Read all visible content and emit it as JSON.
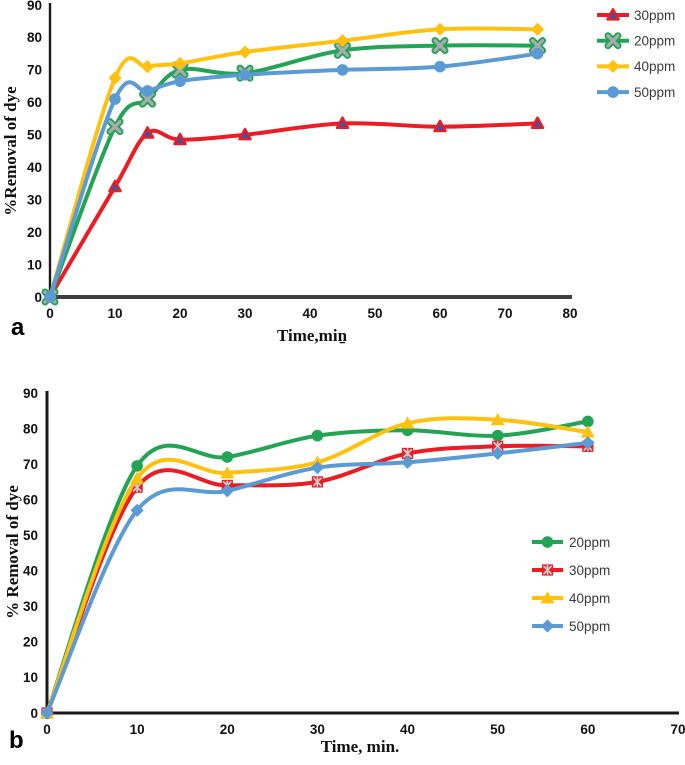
{
  "figure": {
    "panel_a_letter": "a",
    "panel_b_letter": "b"
  },
  "chart_data": [
    {
      "type": "line",
      "panel": "a",
      "title": "",
      "xlabel": "Time,miṉ",
      "ylabel": "%Removal of dye",
      "xlim": [
        0,
        80
      ],
      "ylim": [
        0,
        90
      ],
      "xticks": [
        0,
        10,
        20,
        30,
        40,
        50,
        60,
        70,
        80
      ],
      "yticks": [
        0,
        10,
        20,
        30,
        40,
        50,
        60,
        70,
        80,
        90
      ],
      "grid": false,
      "line_style": "smooth",
      "legend_position": "outside-top-right",
      "x": [
        0,
        10,
        15,
        20,
        30,
        45,
        60,
        75
      ],
      "series": [
        {
          "name": "30ppm",
          "color": "#EC1C24",
          "marker": "triangle-blue",
          "marker_fill": "#3A53A4",
          "values": [
            0,
            34,
            50.5,
            48.5,
            50,
            53.5,
            52.5,
            53.5
          ]
        },
        {
          "name": "20ppm",
          "color": "#23A455",
          "marker": "x-gray",
          "marker_fill": "#A9ABAE",
          "values": [
            0,
            52.5,
            61,
            70,
            69,
            76,
            77.5,
            77.5
          ]
        },
        {
          "name": "40ppm",
          "color": "#FFC10E",
          "marker": "diamond",
          "marker_fill": "#FFC10E",
          "values": [
            0,
            67.5,
            71,
            72,
            75.5,
            79,
            82.5,
            82.5
          ]
        },
        {
          "name": "50ppm",
          "color": "#5B9BD5",
          "marker": "circle",
          "marker_fill": "#5B9BD5",
          "values": [
            0,
            61,
            63.5,
            66.5,
            68.5,
            70,
            71,
            75
          ]
        }
      ]
    },
    {
      "type": "line",
      "panel": "b",
      "title": "",
      "xlabel": "Time, min.",
      "ylabel": "% Removal of dye",
      "xlim": [
        0,
        70
      ],
      "ylim": [
        0,
        90
      ],
      "xticks": [
        0,
        10,
        20,
        30,
        40,
        50,
        60,
        70
      ],
      "yticks": [
        0,
        10,
        20,
        30,
        40,
        50,
        60,
        70,
        80,
        90
      ],
      "grid": false,
      "line_style": "smooth",
      "legend_position": "inside-middle-right",
      "x": [
        0,
        10,
        20,
        30,
        40,
        50,
        60
      ],
      "series": [
        {
          "name": "20ppm",
          "color": "#23A455",
          "marker": "circle",
          "marker_fill": "#23A455",
          "values": [
            0,
            69.5,
            72,
            78,
            79.5,
            78,
            82
          ]
        },
        {
          "name": "30ppm",
          "color": "#EC1C24",
          "marker": "square-asterisk",
          "marker_fill": "#C9CACC",
          "values": [
            0,
            63.5,
            64,
            65,
            73,
            75,
            75
          ]
        },
        {
          "name": "40ppm",
          "color": "#FFC10E",
          "marker": "triangle",
          "marker_fill": "#FFC10E",
          "values": [
            0,
            66,
            67.5,
            70.5,
            81.5,
            82.5,
            79
          ]
        },
        {
          "name": "50ppm",
          "color": "#5B9BD5",
          "marker": "diamond",
          "marker_fill": "#5B9BD5",
          "values": [
            0,
            57,
            62.5,
            69,
            70.5,
            73,
            76
          ]
        }
      ]
    }
  ]
}
